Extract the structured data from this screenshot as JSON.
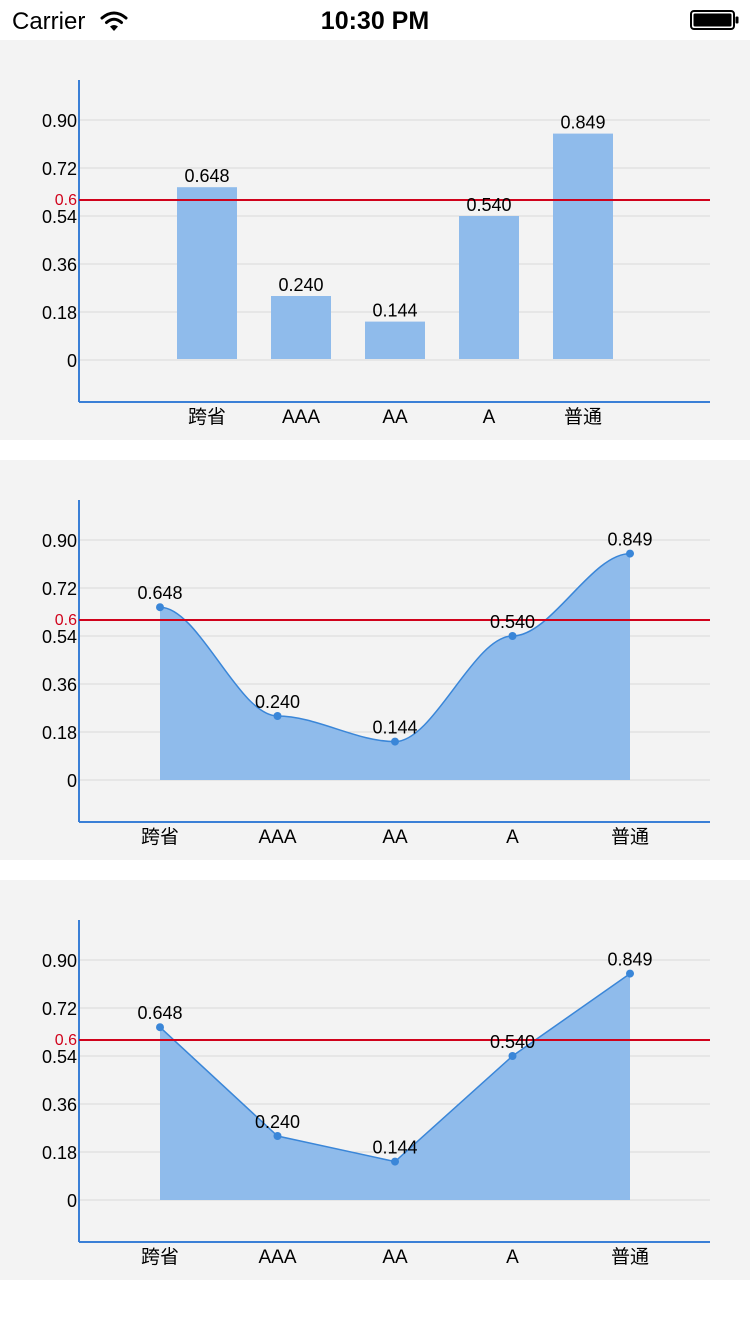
{
  "status_bar": {
    "carrier": "Carrier",
    "time": "10:30 PM",
    "icons": [
      "wifi-icon",
      "battery-icon"
    ]
  },
  "colors": {
    "bar_fill": "#8fbbeb",
    "area_fill": "#8fbbeb",
    "line": "#3a86d8",
    "axis": "#3a7fd6",
    "threshold": "#d0021b",
    "grid": "#d9d9d9",
    "panel_bg": "#f3f3f3"
  },
  "chart_data": [
    {
      "type": "bar",
      "categories": [
        "跨省",
        "AAA",
        "AA",
        "A",
        "普通"
      ],
      "values": [
        0.648,
        0.24,
        0.144,
        0.54,
        0.849
      ],
      "data_labels": [
        "0.648",
        "0.240",
        "0.144",
        "0.540",
        "0.849"
      ],
      "yticks": [
        "0",
        "0.18",
        "0.36",
        "0.54",
        "0.72",
        "0.90"
      ],
      "ytick_values": [
        0,
        0.18,
        0.36,
        0.54,
        0.72,
        0.9
      ],
      "ylim": [
        0,
        1.0
      ],
      "threshold": {
        "value": 0.6,
        "label": "0.6"
      },
      "grid": true
    },
    {
      "type": "area",
      "smooth": true,
      "categories": [
        "跨省",
        "AAA",
        "AA",
        "A",
        "普通"
      ],
      "values": [
        0.648,
        0.24,
        0.144,
        0.54,
        0.849
      ],
      "data_labels": [
        "0.648",
        "0.240",
        "0.144",
        "0.540",
        "0.849"
      ],
      "yticks": [
        "0",
        "0.18",
        "0.36",
        "0.54",
        "0.72",
        "0.90"
      ],
      "ytick_values": [
        0,
        0.18,
        0.36,
        0.54,
        0.72,
        0.9
      ],
      "ylim": [
        0,
        1.0
      ],
      "threshold": {
        "value": 0.6,
        "label": "0.6"
      },
      "grid": true
    },
    {
      "type": "area",
      "smooth": false,
      "categories": [
        "跨省",
        "AAA",
        "AA",
        "A",
        "普通"
      ],
      "values": [
        0.648,
        0.24,
        0.144,
        0.54,
        0.849
      ],
      "data_labels": [
        "0.648",
        "0.240",
        "0.144",
        "0.540",
        "0.849"
      ],
      "yticks": [
        "0",
        "0.18",
        "0.36",
        "0.54",
        "0.72",
        "0.90"
      ],
      "ytick_values": [
        0,
        0.18,
        0.36,
        0.54,
        0.72,
        0.9
      ],
      "ylim": [
        0,
        1.0
      ],
      "threshold": {
        "value": 0.6,
        "label": "0.6"
      },
      "grid": true
    }
  ]
}
